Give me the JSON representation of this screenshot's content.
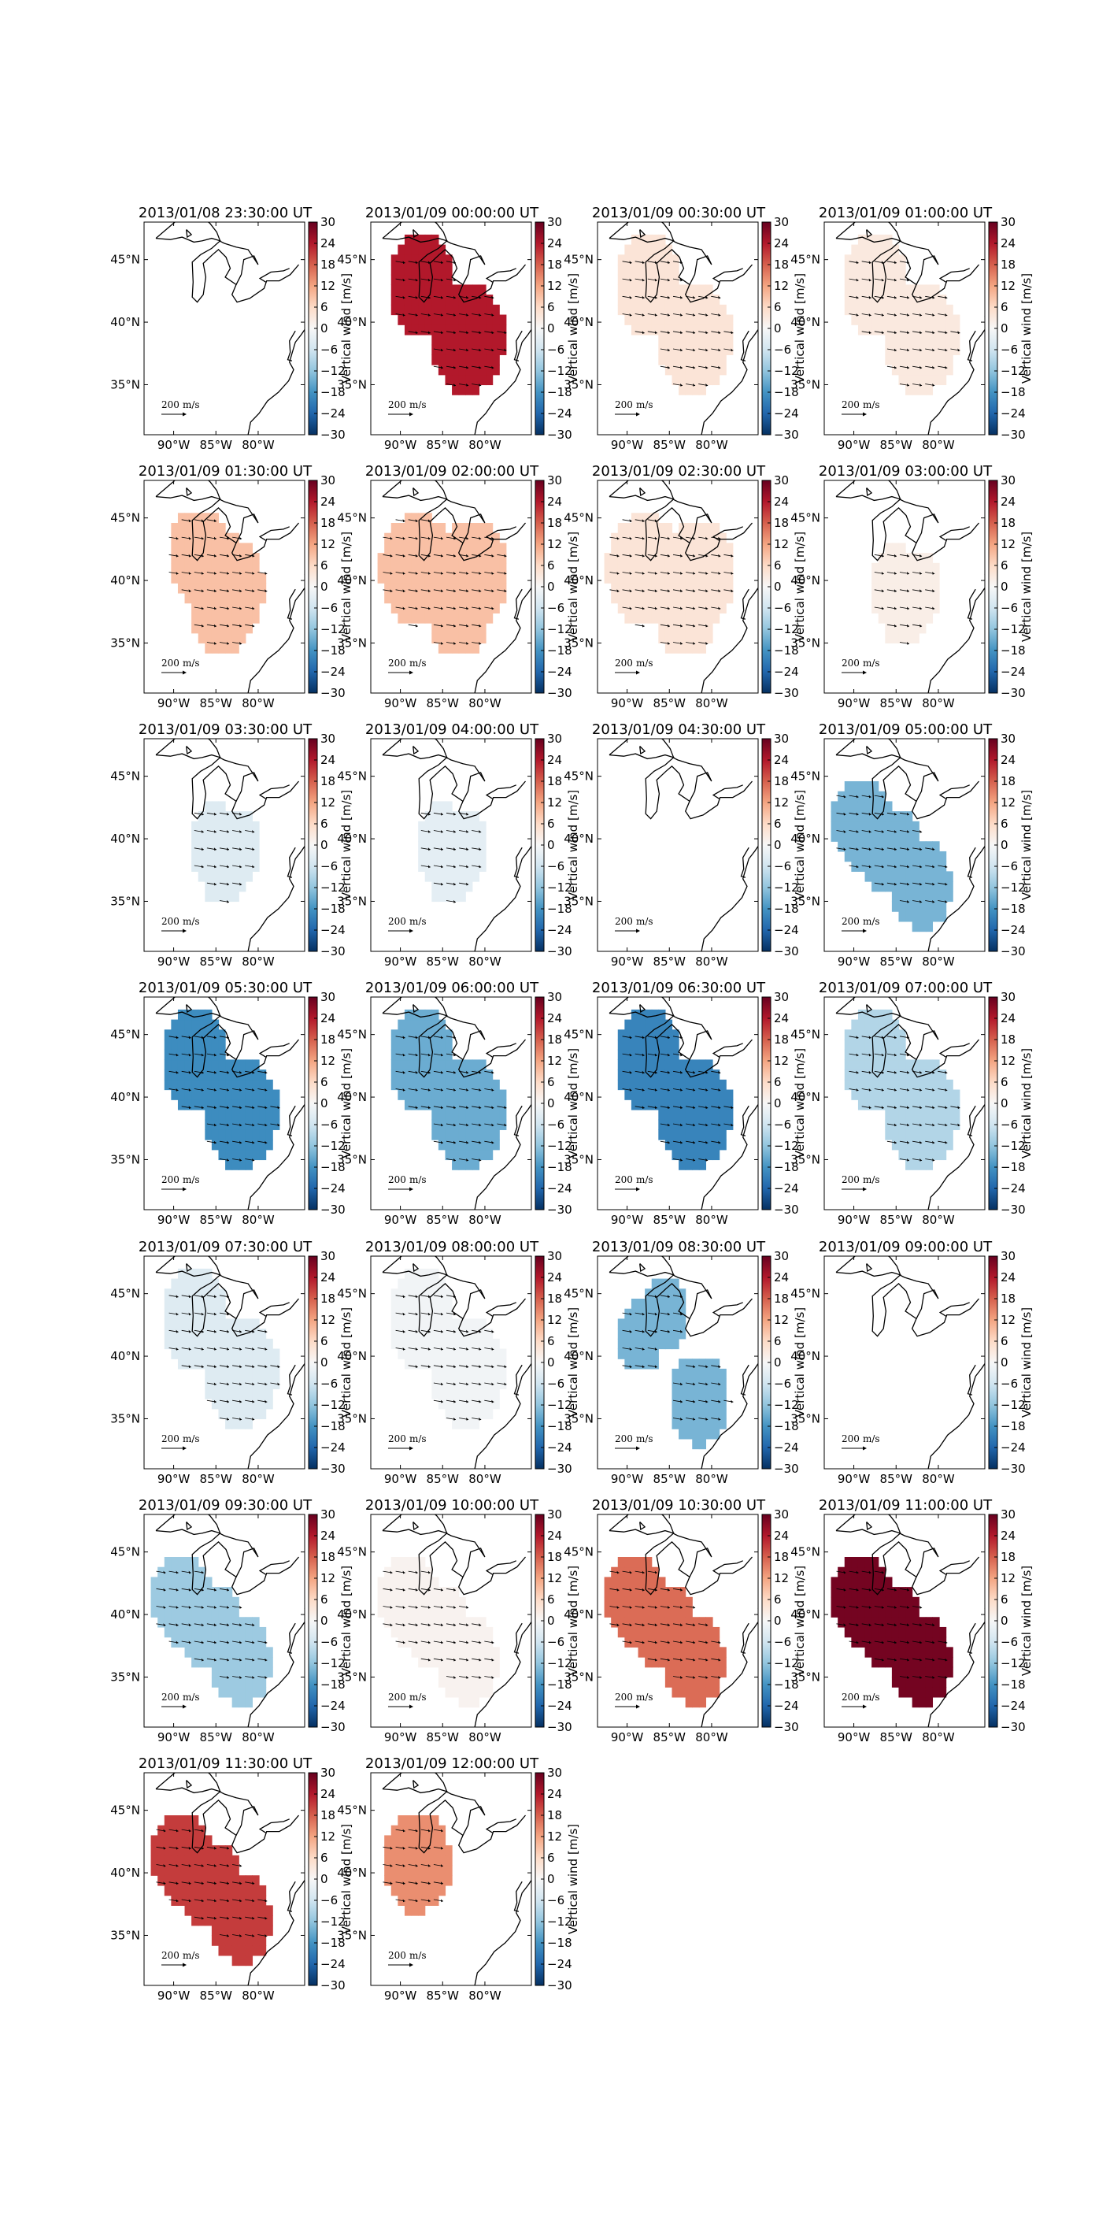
{
  "figure": {
    "colorbar": {
      "label": "Vertical wind [m/s]",
      "ticks": [
        30,
        24,
        18,
        12,
        6,
        0,
        -6,
        -12,
        -18,
        -24,
        -30
      ],
      "range": [
        -30,
        30
      ],
      "colormap": [
        "#053061",
        "#2166ac",
        "#4393c3",
        "#92c5de",
        "#d1e5f0",
        "#f7f7f7",
        "#fddbc7",
        "#f4a582",
        "#d6604d",
        "#b2182b",
        "#67001f"
      ]
    },
    "map_axes": {
      "x_ticks": [
        "90°W",
        "85°W",
        "80°W"
      ],
      "y_ticks": [
        "45°N",
        "40°N",
        "35°N"
      ]
    },
    "reference_vector": {
      "value": "200",
      "unit": "m/s"
    },
    "chart_data": [
      {
        "type": "heatmap",
        "title": "2013/01/08 23:30:00 UT",
        "vertical_wind": null,
        "shape": "none"
      },
      {
        "type": "heatmap",
        "title": "2013/01/09 00:00:00 UT",
        "vertical_wind": 24,
        "shape": "north_south"
      },
      {
        "type": "heatmap",
        "title": "2013/01/09 00:30:00 UT",
        "vertical_wind": 4,
        "shape": "north_south"
      },
      {
        "type": "heatmap",
        "title": "2013/01/09 01:00:00 UT",
        "vertical_wind": 3,
        "shape": "north_south"
      },
      {
        "type": "heatmap",
        "title": "2013/01/09 01:30:00 UT",
        "vertical_wind": 9,
        "shape": "center"
      },
      {
        "type": "heatmap",
        "title": "2013/01/09 02:00:00 UT",
        "vertical_wind": 9,
        "shape": "wide"
      },
      {
        "type": "heatmap",
        "title": "2013/01/09 02:30:00 UT",
        "vertical_wind": 4,
        "shape": "wide"
      },
      {
        "type": "heatmap",
        "title": "2013/01/09 03:00:00 UT",
        "vertical_wind": 2,
        "shape": "small"
      },
      {
        "type": "heatmap",
        "title": "2013/01/09 03:30:00 UT",
        "vertical_wind": -4,
        "shape": "small"
      },
      {
        "type": "heatmap",
        "title": "2013/01/09 04:00:00 UT",
        "vertical_wind": -3,
        "shape": "small"
      },
      {
        "type": "heatmap",
        "title": "2013/01/09 04:30:00 UT",
        "vertical_wind": null,
        "shape": "none"
      },
      {
        "type": "heatmap",
        "title": "2013/01/09 05:00:00 UT",
        "vertical_wind": -14,
        "shape": "diag"
      },
      {
        "type": "heatmap",
        "title": "2013/01/09 05:30:00 UT",
        "vertical_wind": -19,
        "shape": "north_south"
      },
      {
        "type": "heatmap",
        "title": "2013/01/09 06:00:00 UT",
        "vertical_wind": -15,
        "shape": "north_south"
      },
      {
        "type": "heatmap",
        "title": "2013/01/09 06:30:00 UT",
        "vertical_wind": -20,
        "shape": "north_south"
      },
      {
        "type": "heatmap",
        "title": "2013/01/09 07:00:00 UT",
        "vertical_wind": -9,
        "shape": "north_south"
      },
      {
        "type": "heatmap",
        "title": "2013/01/09 07:30:00 UT",
        "vertical_wind": -4,
        "shape": "north_south"
      },
      {
        "type": "heatmap",
        "title": "2013/01/09 08:00:00 UT",
        "vertical_wind": -1,
        "shape": "north_south"
      },
      {
        "type": "heatmap",
        "title": "2013/01/09 08:30:00 UT",
        "vertical_wind": -14,
        "shape": "split"
      },
      {
        "type": "heatmap",
        "title": "2013/01/09 09:00:00 UT",
        "vertical_wind": null,
        "shape": "none"
      },
      {
        "type": "heatmap",
        "title": "2013/01/09 09:30:00 UT",
        "vertical_wind": -11,
        "shape": "diag"
      },
      {
        "type": "heatmap",
        "title": "2013/01/09 10:00:00 UT",
        "vertical_wind": 1,
        "shape": "diag"
      },
      {
        "type": "heatmap",
        "title": "2013/01/09 10:30:00 UT",
        "vertical_wind": 17,
        "shape": "diag"
      },
      {
        "type": "heatmap",
        "title": "2013/01/09 11:00:00 UT",
        "vertical_wind": 29,
        "shape": "diag"
      },
      {
        "type": "heatmap",
        "title": "2013/01/09 11:30:00 UT",
        "vertical_wind": 21,
        "shape": "diag"
      },
      {
        "type": "heatmap",
        "title": "2013/01/09 12:00:00 UT",
        "vertical_wind": 14,
        "shape": "blob"
      }
    ]
  }
}
